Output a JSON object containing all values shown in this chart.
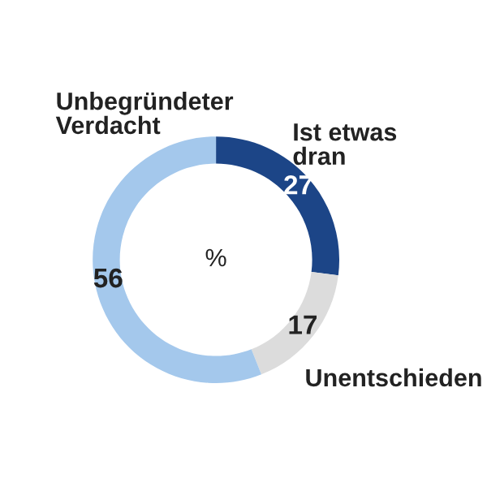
{
  "chart_data": {
    "type": "donut",
    "categories": [
      "Ist etwas\ndran",
      "Unentschieden",
      "Unbegründeter\nVerdacht"
    ],
    "values": [
      27,
      17,
      56
    ],
    "colors": [
      "#1c4587",
      "#dcdcdc",
      "#a4c8ec"
    ],
    "data_labels": true,
    "annotations": [
      "%"
    ],
    "legend": false
  }
}
